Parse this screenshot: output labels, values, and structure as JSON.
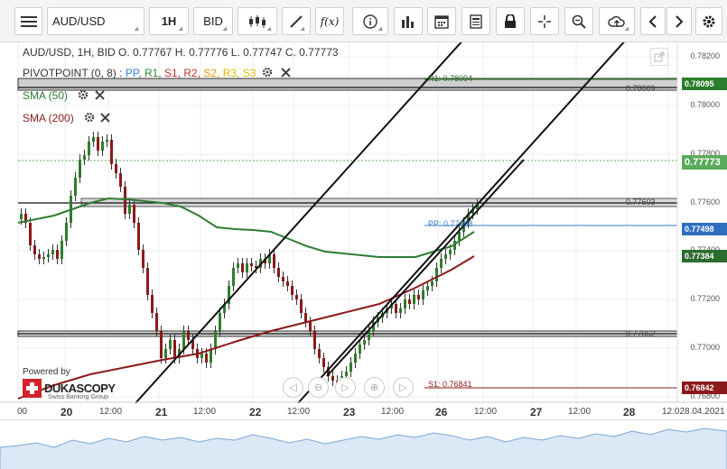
{
  "toolbar": {
    "instrument": "AUD/USD",
    "period": "1H",
    "side": "BID",
    "fx_label": "f(x)"
  },
  "header": {
    "ohlc": "AUD/USD, 1H, BID   O. 0.77767  H. 0.77776  L. 0.77747  C. 0.77773"
  },
  "indicators": {
    "pivot": {
      "name": "PIVOTPOINT (0, 8)",
      "colon": " : ",
      "items": [
        "PP",
        "R1",
        "S1",
        "R2",
        "S2",
        "R3",
        "S3"
      ],
      "colors": [
        "#3a7dc9",
        "#2e8b2e",
        "#c03030",
        "#c03030",
        "#e69a00",
        "#e6b800",
        "#e6b800"
      ]
    },
    "sma50": "SMA (50)",
    "sma200": "SMA (200)"
  },
  "levels": {
    "r1_label": "R1: 0.78094",
    "line1": "0.78069",
    "line2": "0.77603",
    "pp_label": "PP: 0.77498",
    "line3": "0.77062",
    "s1_label": "S1: 0.76841"
  },
  "price_labels": [
    {
      "text": "0.78095",
      "bg": "#2e7d2e",
      "fg": "#ffffff"
    },
    {
      "text": "0.77773",
      "bg": "#5aab5a",
      "fg": "#ffffff"
    },
    {
      "text": "0.77498",
      "bg": "#2f6fc0",
      "fg": "#ffffff"
    },
    {
      "text": "0.77384",
      "bg": "#2e6b2e",
      "fg": "#ffffff"
    },
    {
      "text": "0.76842",
      "bg": "#8b1a1a",
      "fg": "#ffffff"
    }
  ],
  "y_axis": [
    "0.78200",
    "0.78000",
    "0.77800",
    "0.77600",
    "0.77400",
    "0.77200",
    "0.77000",
    "0.76800"
  ],
  "x_axis": {
    "small": [
      "00",
      "12:00",
      "12:00",
      "12:00",
      "12:00",
      "12:00",
      "12:00",
      "12:00"
    ],
    "days": [
      "20",
      "21",
      "22",
      "23",
      "26",
      "27",
      "28"
    ],
    "end_date": "12:028.04.2021"
  },
  "branding": {
    "powered": "Powered by",
    "name": "DUKASCOPY",
    "sub": "Swiss Banking Group"
  },
  "colors": {
    "sma50": "#2f7d32",
    "sma200": "#8b1a1a",
    "bull": "#2e7d2e",
    "bear": "#8b1a1a"
  }
}
